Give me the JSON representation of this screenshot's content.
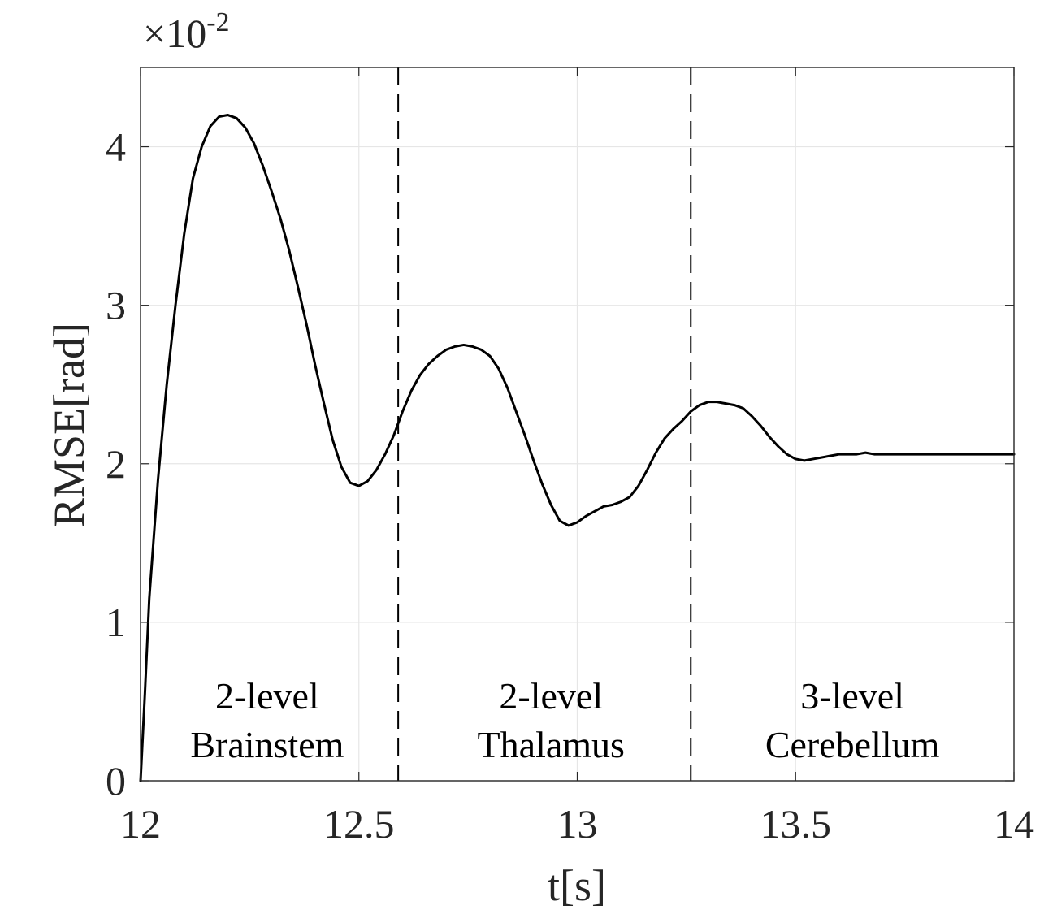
{
  "chart_data": {
    "type": "line",
    "title": "",
    "xlabel": "t[s]",
    "ylabel": "RMSE[rad]",
    "exponent_label": "×10",
    "exponent_power": "-2",
    "xlim": [
      12,
      14
    ],
    "ylim": [
      0,
      4.5
    ],
    "xticks": [
      12,
      12.5,
      13,
      13.5,
      14
    ],
    "xtick_labels": [
      "12",
      "12.5",
      "13",
      "13.5",
      "14"
    ],
    "yticks": [
      0,
      1,
      2,
      3,
      4
    ],
    "ytick_labels": [
      "0",
      "1",
      "2",
      "3",
      "4"
    ],
    "grid": true,
    "series": [
      {
        "name": "RMSE",
        "color": "#000000",
        "x": [
          12.0,
          12.01,
          12.02,
          12.04,
          12.06,
          12.08,
          12.1,
          12.12,
          12.14,
          12.16,
          12.18,
          12.2,
          12.22,
          12.24,
          12.26,
          12.28,
          12.3,
          12.32,
          12.34,
          12.36,
          12.38,
          12.4,
          12.42,
          12.44,
          12.46,
          12.48,
          12.5,
          12.52,
          12.54,
          12.56,
          12.58,
          12.6,
          12.62,
          12.64,
          12.66,
          12.68,
          12.7,
          12.72,
          12.74,
          12.76,
          12.78,
          12.8,
          12.82,
          12.84,
          12.86,
          12.88,
          12.9,
          12.92,
          12.94,
          12.96,
          12.98,
          13.0,
          13.02,
          13.04,
          13.06,
          13.08,
          13.1,
          13.12,
          13.14,
          13.16,
          13.18,
          13.2,
          13.22,
          13.24,
          13.26,
          13.28,
          13.3,
          13.32,
          13.34,
          13.36,
          13.38,
          13.4,
          13.42,
          13.44,
          13.46,
          13.48,
          13.5,
          13.52,
          13.54,
          13.56,
          13.58,
          13.6,
          13.62,
          13.64,
          13.66,
          13.68,
          13.7,
          13.72,
          13.74,
          13.76,
          13.78,
          13.8,
          13.82,
          13.84,
          13.86,
          13.88,
          13.9,
          13.92,
          13.94,
          13.96,
          13.98,
          14.0
        ],
        "y": [
          0.0,
          0.55,
          1.15,
          1.9,
          2.5,
          3.0,
          3.45,
          3.8,
          4.0,
          4.13,
          4.19,
          4.2,
          4.18,
          4.12,
          4.02,
          3.88,
          3.72,
          3.55,
          3.35,
          3.12,
          2.88,
          2.62,
          2.38,
          2.15,
          1.98,
          1.88,
          1.86,
          1.89,
          1.96,
          2.06,
          2.18,
          2.33,
          2.46,
          2.56,
          2.63,
          2.68,
          2.72,
          2.74,
          2.75,
          2.74,
          2.72,
          2.68,
          2.6,
          2.48,
          2.33,
          2.18,
          2.02,
          1.87,
          1.74,
          1.64,
          1.61,
          1.63,
          1.67,
          1.7,
          1.73,
          1.74,
          1.76,
          1.79,
          1.86,
          1.96,
          2.07,
          2.16,
          2.22,
          2.27,
          2.33,
          2.37,
          2.39,
          2.39,
          2.38,
          2.37,
          2.35,
          2.3,
          2.24,
          2.17,
          2.11,
          2.06,
          2.03,
          2.02,
          2.03,
          2.04,
          2.05,
          2.06,
          2.06,
          2.06,
          2.07,
          2.06,
          2.06,
          2.06,
          2.06,
          2.06,
          2.06,
          2.06,
          2.06,
          2.06,
          2.06,
          2.06,
          2.06,
          2.06,
          2.06,
          2.06,
          2.06,
          2.06
        ]
      }
    ],
    "vlines": [
      {
        "name": "boundary-1",
        "x": 12.59,
        "style": "dashed"
      },
      {
        "name": "boundary-2",
        "x": 13.26,
        "style": "dashed"
      }
    ],
    "annotations": [
      {
        "name": "region-brainstem",
        "x": 12.29,
        "lines": [
          "2-level",
          "Brainstem"
        ]
      },
      {
        "name": "region-thalamus",
        "x": 12.94,
        "lines": [
          "2-level",
          "Thalamus"
        ]
      },
      {
        "name": "region-cerebellum",
        "x": 13.63,
        "lines": [
          "3-level",
          "Cerebellum"
        ]
      }
    ]
  }
}
